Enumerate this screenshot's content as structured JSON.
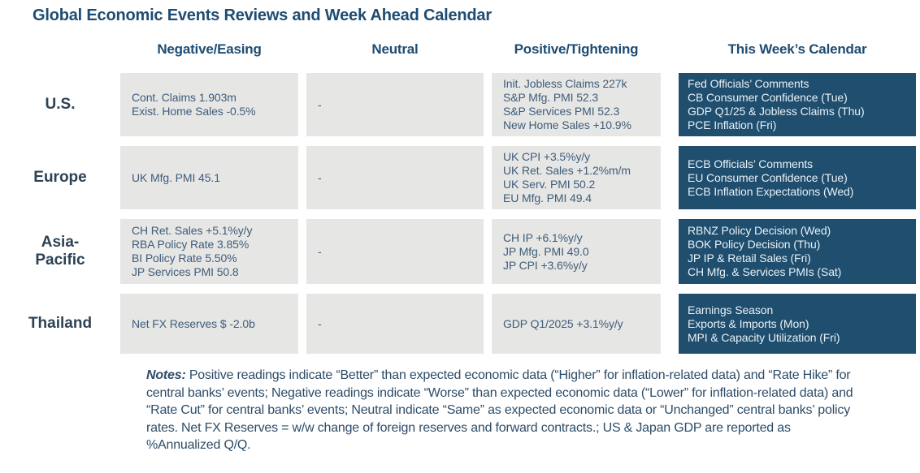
{
  "title": "Global Economic Events Reviews and Week Ahead Calendar",
  "columns": {
    "negative": "Negative/Easing",
    "neutral": "Neutral",
    "positive": "Positive/Tightening",
    "calendar": "This Week’s Calendar"
  },
  "rows": [
    {
      "label": "U.S.",
      "negative": [
        "Cont. Claims 1.903m",
        "Exist. Home Sales -0.5%"
      ],
      "neutral": [
        "-"
      ],
      "positive": [
        "Init. Jobless Claims 227k",
        "S&P Mfg. PMI 52.3",
        "S&P Services PMI 52.3",
        "New Home Sales +10.9%"
      ],
      "calendar": [
        "Fed Officials’ Comments",
        "CB Consumer Confidence (Tue)",
        "GDP Q1/25 & Jobless Claims (Thu)",
        "PCE Inflation (Fri)"
      ]
    },
    {
      "label": "Europe",
      "negative": [
        "UK Mfg. PMI 45.1"
      ],
      "neutral": [
        "-"
      ],
      "positive": [
        "UK CPI +3.5%y/y",
        "UK Ret. Sales +1.2%m/m",
        "UK Serv. PMI 50.2",
        "EU Mfg. PMI 49.4"
      ],
      "calendar": [
        "ECB Officials’ Comments",
        "EU Consumer Confidence (Tue)",
        "ECB Inflation Expectations (Wed)"
      ]
    },
    {
      "label": "Asia-\nPacific",
      "negative": [
        "CH Ret. Sales +5.1%y/y",
        "RBA Policy Rate 3.85%",
        "BI Policy Rate 5.50%",
        "JP Services PMI 50.8"
      ],
      "neutral": [
        "-"
      ],
      "positive": [
        "CH IP +6.1%y/y",
        "JP Mfg. PMI 49.0",
        "JP CPI +3.6%y/y"
      ],
      "calendar": [
        "RBNZ Policy Decision (Wed)",
        "BOK Policy Decision (Thu)",
        "JP IP & Retail Sales (Fri)",
        "CH Mfg. & Services PMIs (Sat)"
      ]
    },
    {
      "label": "Thailand",
      "negative": [
        "Net FX Reserves $ -2.0b"
      ],
      "neutral": [
        "-"
      ],
      "positive": [
        "GDP Q1/2025 +3.1%y/y"
      ],
      "calendar": [
        "Earnings Season",
        "Exports & Imports (Mon)",
        "MPI & Capacity Utilization (Fri)"
      ]
    }
  ],
  "notes": {
    "label": "Notes:",
    "body": " Positive readings indicate “Better” than expected economic data (“Higher” for inflation-related data) and “Rate Hike” for central banks’ events; Negative readings indicate “Worse” than expected economic data (“Lower” for inflation-related data) and “Rate Cut” for central banks’ events; Neutral indicate “Same” as expected economic data or “Unchanged” central banks’ policy rates. Net FX Reserves = w/w change of foreign reserves and forward contracts.; US & Japan GDP are reported as %Annualized Q/Q."
  },
  "colors": {
    "header_blue": "#1e4c72",
    "calendar_cell_bg": "#1f4e6e",
    "calendar_cell_text": "#e8f1f7",
    "gray_cell_bg": "#e6e6e5",
    "gray_cell_text": "#3f5d7a",
    "row_label_text": "#2d4255",
    "notes_text": "#2d4c67"
  }
}
